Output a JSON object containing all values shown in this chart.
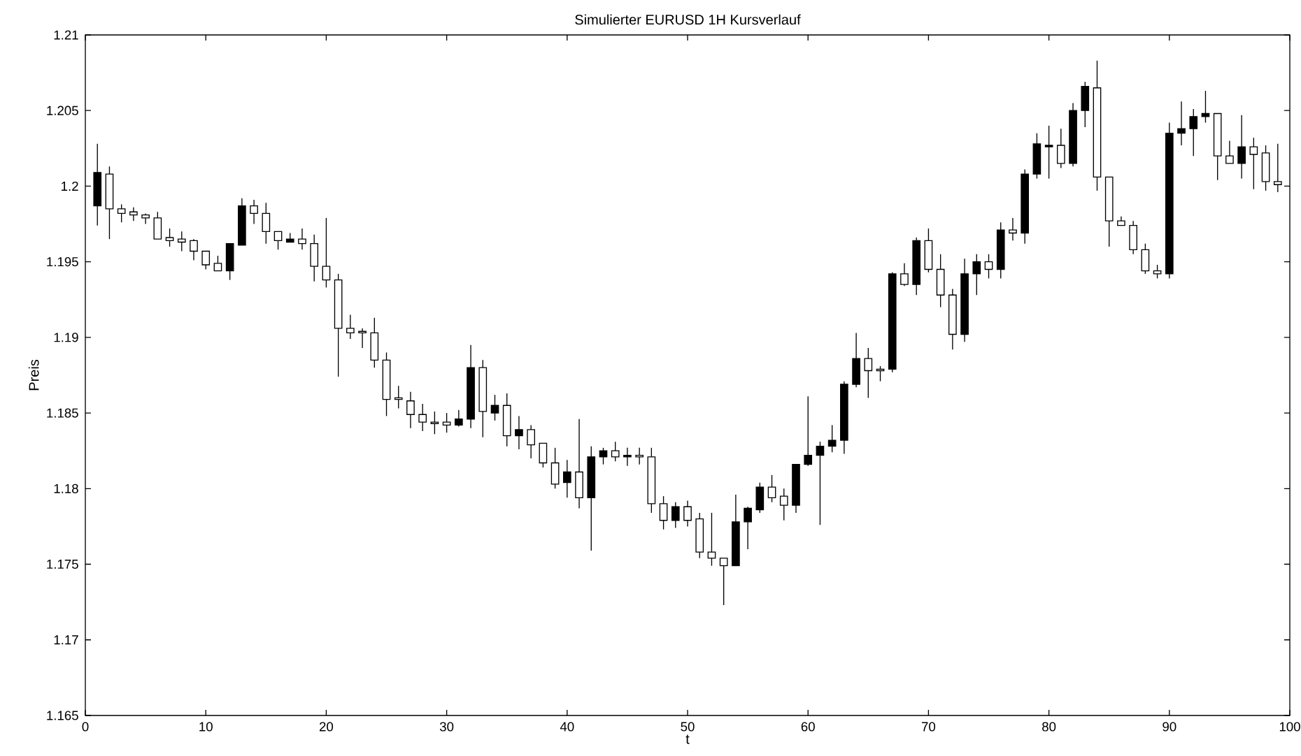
{
  "chart_data": {
    "type": "candlestick",
    "title": "Simulierter EURUSD 1H Kursverlauf",
    "xlabel": "t",
    "ylabel": "Preis",
    "x": [
      1,
      2,
      3,
      4,
      5,
      6,
      7,
      8,
      9,
      10,
      11,
      12,
      13,
      14,
      15,
      16,
      17,
      18,
      19,
      20,
      21,
      22,
      23,
      24,
      25,
      26,
      27,
      28,
      29,
      30,
      31,
      32,
      33,
      34,
      35,
      36,
      37,
      38,
      39,
      40,
      41,
      42,
      43,
      44,
      45,
      46,
      47,
      48,
      49,
      50,
      51,
      52,
      53,
      54,
      55,
      56,
      57,
      58,
      59,
      60,
      61,
      62,
      63,
      64,
      65,
      66,
      67,
      68,
      69,
      70,
      71,
      72,
      73,
      74,
      75,
      76,
      77,
      78,
      79,
      80,
      81,
      82,
      83,
      84,
      85,
      86,
      87,
      88,
      89,
      90,
      91,
      92,
      93,
      94,
      95,
      96,
      97,
      98,
      99
    ],
    "ohlc": [
      [
        1.1987,
        1.2028,
        1.1974,
        1.2009
      ],
      [
        1.2008,
        1.2013,
        1.1965,
        1.1985
      ],
      [
        1.1985,
        1.1988,
        1.1976,
        1.1982
      ],
      [
        1.1983,
        1.1986,
        1.1977,
        1.1981
      ],
      [
        1.1981,
        1.1982,
        1.1975,
        1.1979
      ],
      [
        1.1979,
        1.1983,
        1.1965,
        1.1965
      ],
      [
        1.1966,
        1.1972,
        1.196,
        1.1964
      ],
      [
        1.1965,
        1.197,
        1.1957,
        1.1963
      ],
      [
        1.1964,
        1.1965,
        1.1951,
        1.1957
      ],
      [
        1.1957,
        1.1957,
        1.1945,
        1.1948
      ],
      [
        1.1949,
        1.1954,
        1.1944,
        1.1944
      ],
      [
        1.1944,
        1.1962,
        1.1938,
        1.1962
      ],
      [
        1.1961,
        1.1992,
        1.1961,
        1.1987
      ],
      [
        1.1987,
        1.1991,
        1.1975,
        1.1982
      ],
      [
        1.1982,
        1.1989,
        1.1962,
        1.197
      ],
      [
        1.197,
        1.197,
        1.1958,
        1.1964
      ],
      [
        1.1963,
        1.1969,
        1.1963,
        1.1965
      ],
      [
        1.1965,
        1.1972,
        1.1958,
        1.1962
      ],
      [
        1.1962,
        1.1968,
        1.1937,
        1.1947
      ],
      [
        1.1947,
        1.1979,
        1.1933,
        1.1938
      ],
      [
        1.1938,
        1.1942,
        1.1874,
        1.1906
      ],
      [
        1.1906,
        1.1915,
        1.1899,
        1.1903
      ],
      [
        1.1904,
        1.1906,
        1.1893,
        1.1903
      ],
      [
        1.1903,
        1.1913,
        1.188,
        1.1885
      ],
      [
        1.1885,
        1.189,
        1.1848,
        1.1859
      ],
      [
        1.186,
        1.1868,
        1.1853,
        1.1859
      ],
      [
        1.1858,
        1.1864,
        1.184,
        1.1849
      ],
      [
        1.1849,
        1.1856,
        1.1838,
        1.1844
      ],
      [
        1.1844,
        1.1851,
        1.1836,
        1.1843
      ],
      [
        1.1844,
        1.185,
        1.1837,
        1.1842
      ],
      [
        1.1842,
        1.1852,
        1.1841,
        1.1846
      ],
      [
        1.1846,
        1.1895,
        1.184,
        1.188
      ],
      [
        1.188,
        1.1885,
        1.1834,
        1.1851
      ],
      [
        1.185,
        1.1862,
        1.1845,
        1.1855
      ],
      [
        1.1855,
        1.1863,
        1.1828,
        1.1835
      ],
      [
        1.1835,
        1.1848,
        1.1826,
        1.1839
      ],
      [
        1.1839,
        1.1842,
        1.182,
        1.1829
      ],
      [
        1.183,
        1.183,
        1.1814,
        1.1817
      ],
      [
        1.1817,
        1.1827,
        1.18,
        1.1803
      ],
      [
        1.1804,
        1.1819,
        1.1794,
        1.1811
      ],
      [
        1.1811,
        1.1846,
        1.1787,
        1.1794
      ],
      [
        1.1794,
        1.1828,
        1.1759,
        1.1821
      ],
      [
        1.1821,
        1.1827,
        1.1816,
        1.1825
      ],
      [
        1.1825,
        1.1831,
        1.1818,
        1.1821
      ],
      [
        1.1821,
        1.1827,
        1.1815,
        1.1822
      ],
      [
        1.1822,
        1.1827,
        1.1816,
        1.1821
      ],
      [
        1.1821,
        1.1827,
        1.1784,
        1.179
      ],
      [
        1.179,
        1.1795,
        1.1773,
        1.1779
      ],
      [
        1.1779,
        1.1791,
        1.1774,
        1.1788
      ],
      [
        1.1788,
        1.1792,
        1.1775,
        1.1779
      ],
      [
        1.178,
        1.1784,
        1.1754,
        1.1758
      ],
      [
        1.1758,
        1.1784,
        1.1749,
        1.1754
      ],
      [
        1.1754,
        1.1754,
        1.1723,
        1.1749
      ],
      [
        1.1749,
        1.1796,
        1.1749,
        1.1778
      ],
      [
        1.1778,
        1.1788,
        1.176,
        1.1787
      ],
      [
        1.1786,
        1.1804,
        1.1784,
        1.1801
      ],
      [
        1.1801,
        1.1809,
        1.1791,
        1.1794
      ],
      [
        1.1795,
        1.18,
        1.1779,
        1.1789
      ],
      [
        1.1789,
        1.1816,
        1.1784,
        1.1816
      ],
      [
        1.1816,
        1.1861,
        1.1815,
        1.1822
      ],
      [
        1.1822,
        1.1831,
        1.1776,
        1.1828
      ],
      [
        1.1828,
        1.1842,
        1.1824,
        1.1832
      ],
      [
        1.1832,
        1.1871,
        1.1823,
        1.1869
      ],
      [
        1.1869,
        1.1903,
        1.1867,
        1.1886
      ],
      [
        1.1886,
        1.1893,
        1.186,
        1.1878
      ],
      [
        1.1879,
        1.1881,
        1.1871,
        1.1878
      ],
      [
        1.1879,
        1.1943,
        1.1877,
        1.1942
      ],
      [
        1.1942,
        1.1949,
        1.1934,
        1.1935
      ],
      [
        1.1935,
        1.1966,
        1.1928,
        1.1964
      ],
      [
        1.1964,
        1.1972,
        1.1943,
        1.1945
      ],
      [
        1.1945,
        1.1955,
        1.192,
        1.1928
      ],
      [
        1.1928,
        1.1932,
        1.1892,
        1.1902
      ],
      [
        1.1902,
        1.1952,
        1.1897,
        1.1942
      ],
      [
        1.1942,
        1.1955,
        1.1928,
        1.195
      ],
      [
        1.195,
        1.1955,
        1.1939,
        1.1945
      ],
      [
        1.1945,
        1.1976,
        1.1939,
        1.1971
      ],
      [
        1.1971,
        1.1979,
        1.1964,
        1.1969
      ],
      [
        1.1969,
        1.2011,
        1.1962,
        1.2008
      ],
      [
        1.2008,
        1.2035,
        1.2005,
        1.2028
      ],
      [
        1.2026,
        1.204,
        1.2005,
        1.2027
      ],
      [
        1.2027,
        1.2038,
        1.2012,
        1.2015
      ],
      [
        1.2015,
        1.2055,
        1.2013,
        1.205
      ],
      [
        1.205,
        1.2069,
        1.2039,
        1.2066
      ],
      [
        1.2065,
        1.2083,
        1.1997,
        1.2006
      ],
      [
        1.2006,
        1.2006,
        1.196,
        1.1977
      ],
      [
        1.1977,
        1.198,
        1.1974,
        1.1974
      ],
      [
        1.1974,
        1.1977,
        1.1955,
        1.1958
      ],
      [
        1.1958,
        1.1962,
        1.1942,
        1.1944
      ],
      [
        1.1944,
        1.1948,
        1.1939,
        1.1942
      ],
      [
        1.1942,
        1.2042,
        1.1939,
        1.2035
      ],
      [
        1.2035,
        1.2056,
        1.2027,
        1.2038
      ],
      [
        1.2038,
        1.2051,
        1.202,
        1.2046
      ],
      [
        1.2046,
        1.2063,
        1.2042,
        1.2048
      ],
      [
        1.2048,
        1.2048,
        1.2004,
        1.202
      ],
      [
        1.202,
        1.203,
        1.2015,
        1.2015
      ],
      [
        1.2015,
        1.2047,
        1.2005,
        1.2026
      ],
      [
        1.2026,
        1.2032,
        1.1998,
        1.2021
      ],
      [
        1.2022,
        1.2027,
        1.1997,
        1.2003
      ],
      [
        1.2003,
        1.2028,
        1.1996,
        1.2001
      ]
    ],
    "xlim": [
      0,
      100
    ],
    "xticks": [
      0,
      10,
      20,
      30,
      40,
      50,
      60,
      70,
      80,
      90,
      100
    ],
    "ylim": [
      1.165,
      1.21
    ],
    "yticks": [
      1.165,
      1.17,
      1.175,
      1.18,
      1.185,
      1.19,
      1.195,
      1.2,
      1.205,
      1.21
    ],
    "grid": false
  }
}
